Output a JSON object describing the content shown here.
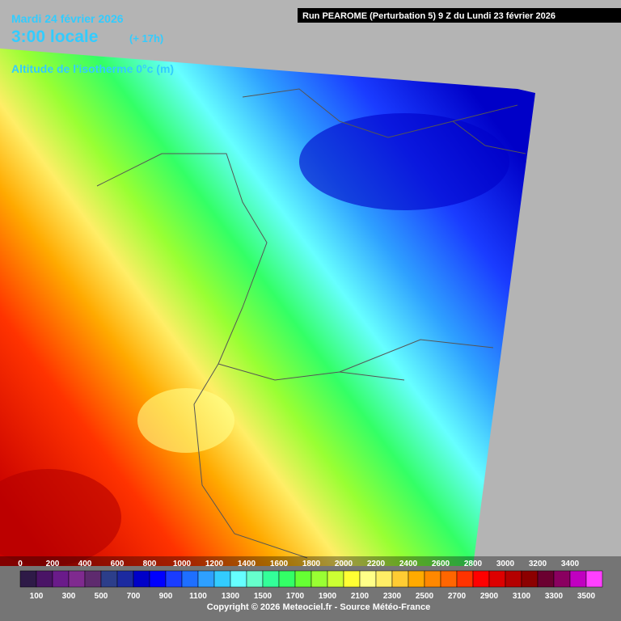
{
  "header": {
    "date": "Mardi 24 février 2026",
    "time": "3:00 locale",
    "lead": "(+ 17h)",
    "variable": "Altitude de l'isotherme 0°c (m)",
    "run": "Run PEAROME (Perturbation 5) 9 Z du Lundi 23 février 2026"
  },
  "legend": {
    "top_labels": [
      0,
      200,
      400,
      600,
      800,
      1000,
      1200,
      1400,
      1600,
      1800,
      2000,
      2200,
      2400,
      2600,
      2800,
      3000,
      3200,
      3400
    ],
    "bottom_labels": [
      100,
      300,
      500,
      700,
      900,
      1100,
      1300,
      1500,
      1700,
      1900,
      2100,
      2300,
      2500,
      2700,
      2900,
      3100,
      3300,
      3500
    ],
    "colors": [
      "#2e1a47",
      "#4a1466",
      "#6a1b8a",
      "#7f2a8f",
      "#5e2a6e",
      "#2c3e8a",
      "#1c2aa0",
      "#0000c8",
      "#0000ff",
      "#1a3cff",
      "#1e6fff",
      "#2ea0ff",
      "#33ccff",
      "#66ffff",
      "#66ffcc",
      "#33ff99",
      "#33ff66",
      "#66ff33",
      "#99ff33",
      "#ccff33",
      "#ffff33",
      "#ffff88",
      "#ffee66",
      "#ffcc33",
      "#ffaa00",
      "#ff8800",
      "#ff6600",
      "#ff3300",
      "#ff0000",
      "#dd0000",
      "#b40000",
      "#8c0000",
      "#6b0030",
      "#8a0060",
      "#c000c0",
      "#ff40ff"
    ]
  },
  "footer": {
    "copyright": "Copyright © 2026 Meteociel.fr - Source Météo-France"
  }
}
